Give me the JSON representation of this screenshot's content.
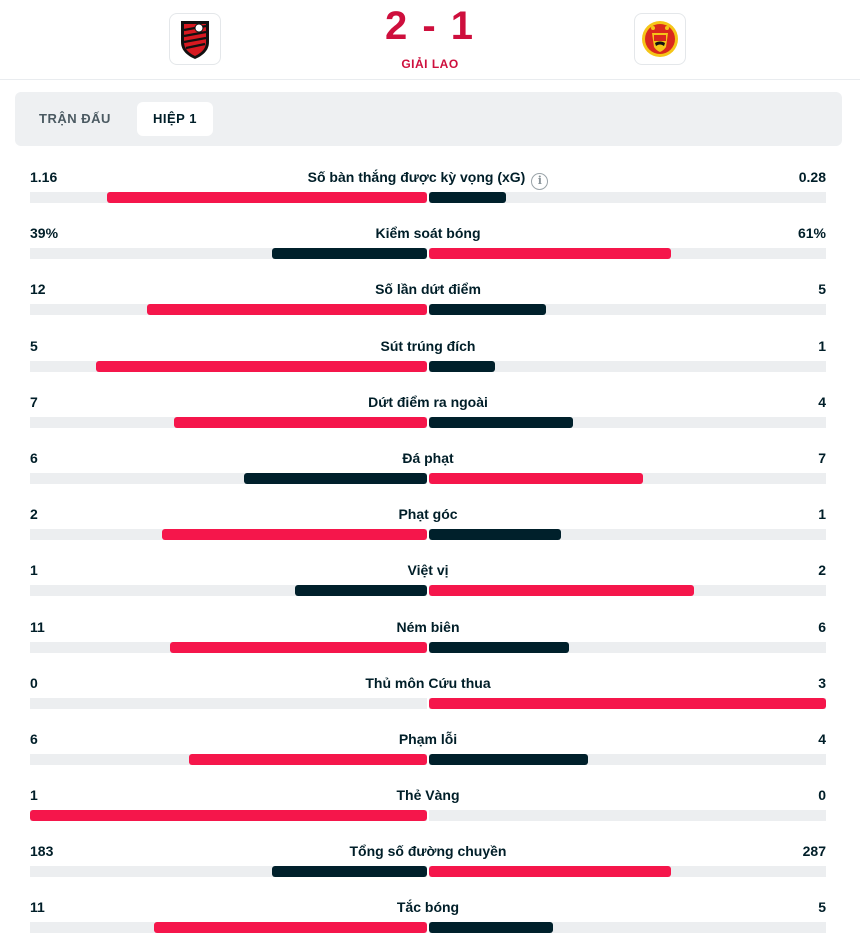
{
  "match": {
    "score": "2 - 1",
    "status": "GIẢI LAO",
    "home_logo_icon": "bournemouth-crest-icon",
    "away_logo_icon": "manchester-united-crest-icon"
  },
  "tabs": [
    {
      "label": "TRẬN ĐẤU",
      "active": false
    },
    {
      "label": "HIỆP 1",
      "active": true
    }
  ],
  "colors": {
    "accent": "#ce0f3d",
    "bar_red": "#f5164b",
    "bar_dark": "#00202b"
  },
  "stats": [
    {
      "name": "Số bàn thắng được kỳ vọng (xG)",
      "home": "1.16",
      "away": "0.28",
      "info": true
    },
    {
      "name": "Kiểm soát bóng",
      "home": "39%",
      "away": "61%"
    },
    {
      "name": "Số lần dứt điểm",
      "home": "12",
      "away": "5"
    },
    {
      "name": "Sút trúng đích",
      "home": "5",
      "away": "1"
    },
    {
      "name": "Dứt điểm ra ngoài",
      "home": "7",
      "away": "4"
    },
    {
      "name": "Đá phạt",
      "home": "6",
      "away": "7"
    },
    {
      "name": "Phạt góc",
      "home": "2",
      "away": "1"
    },
    {
      "name": "Việt vị",
      "home": "1",
      "away": "2"
    },
    {
      "name": "Ném biên",
      "home": "11",
      "away": "6"
    },
    {
      "name": "Thủ môn Cứu thua",
      "home": "0",
      "away": "3"
    },
    {
      "name": "Phạm lỗi",
      "home": "6",
      "away": "4"
    },
    {
      "name": "Thẻ Vàng",
      "home": "1",
      "away": "0"
    },
    {
      "name": "Tổng số đường chuyền",
      "home": "183",
      "away": "287"
    },
    {
      "name": "Tắc bóng",
      "home": "11",
      "away": "5"
    }
  ]
}
